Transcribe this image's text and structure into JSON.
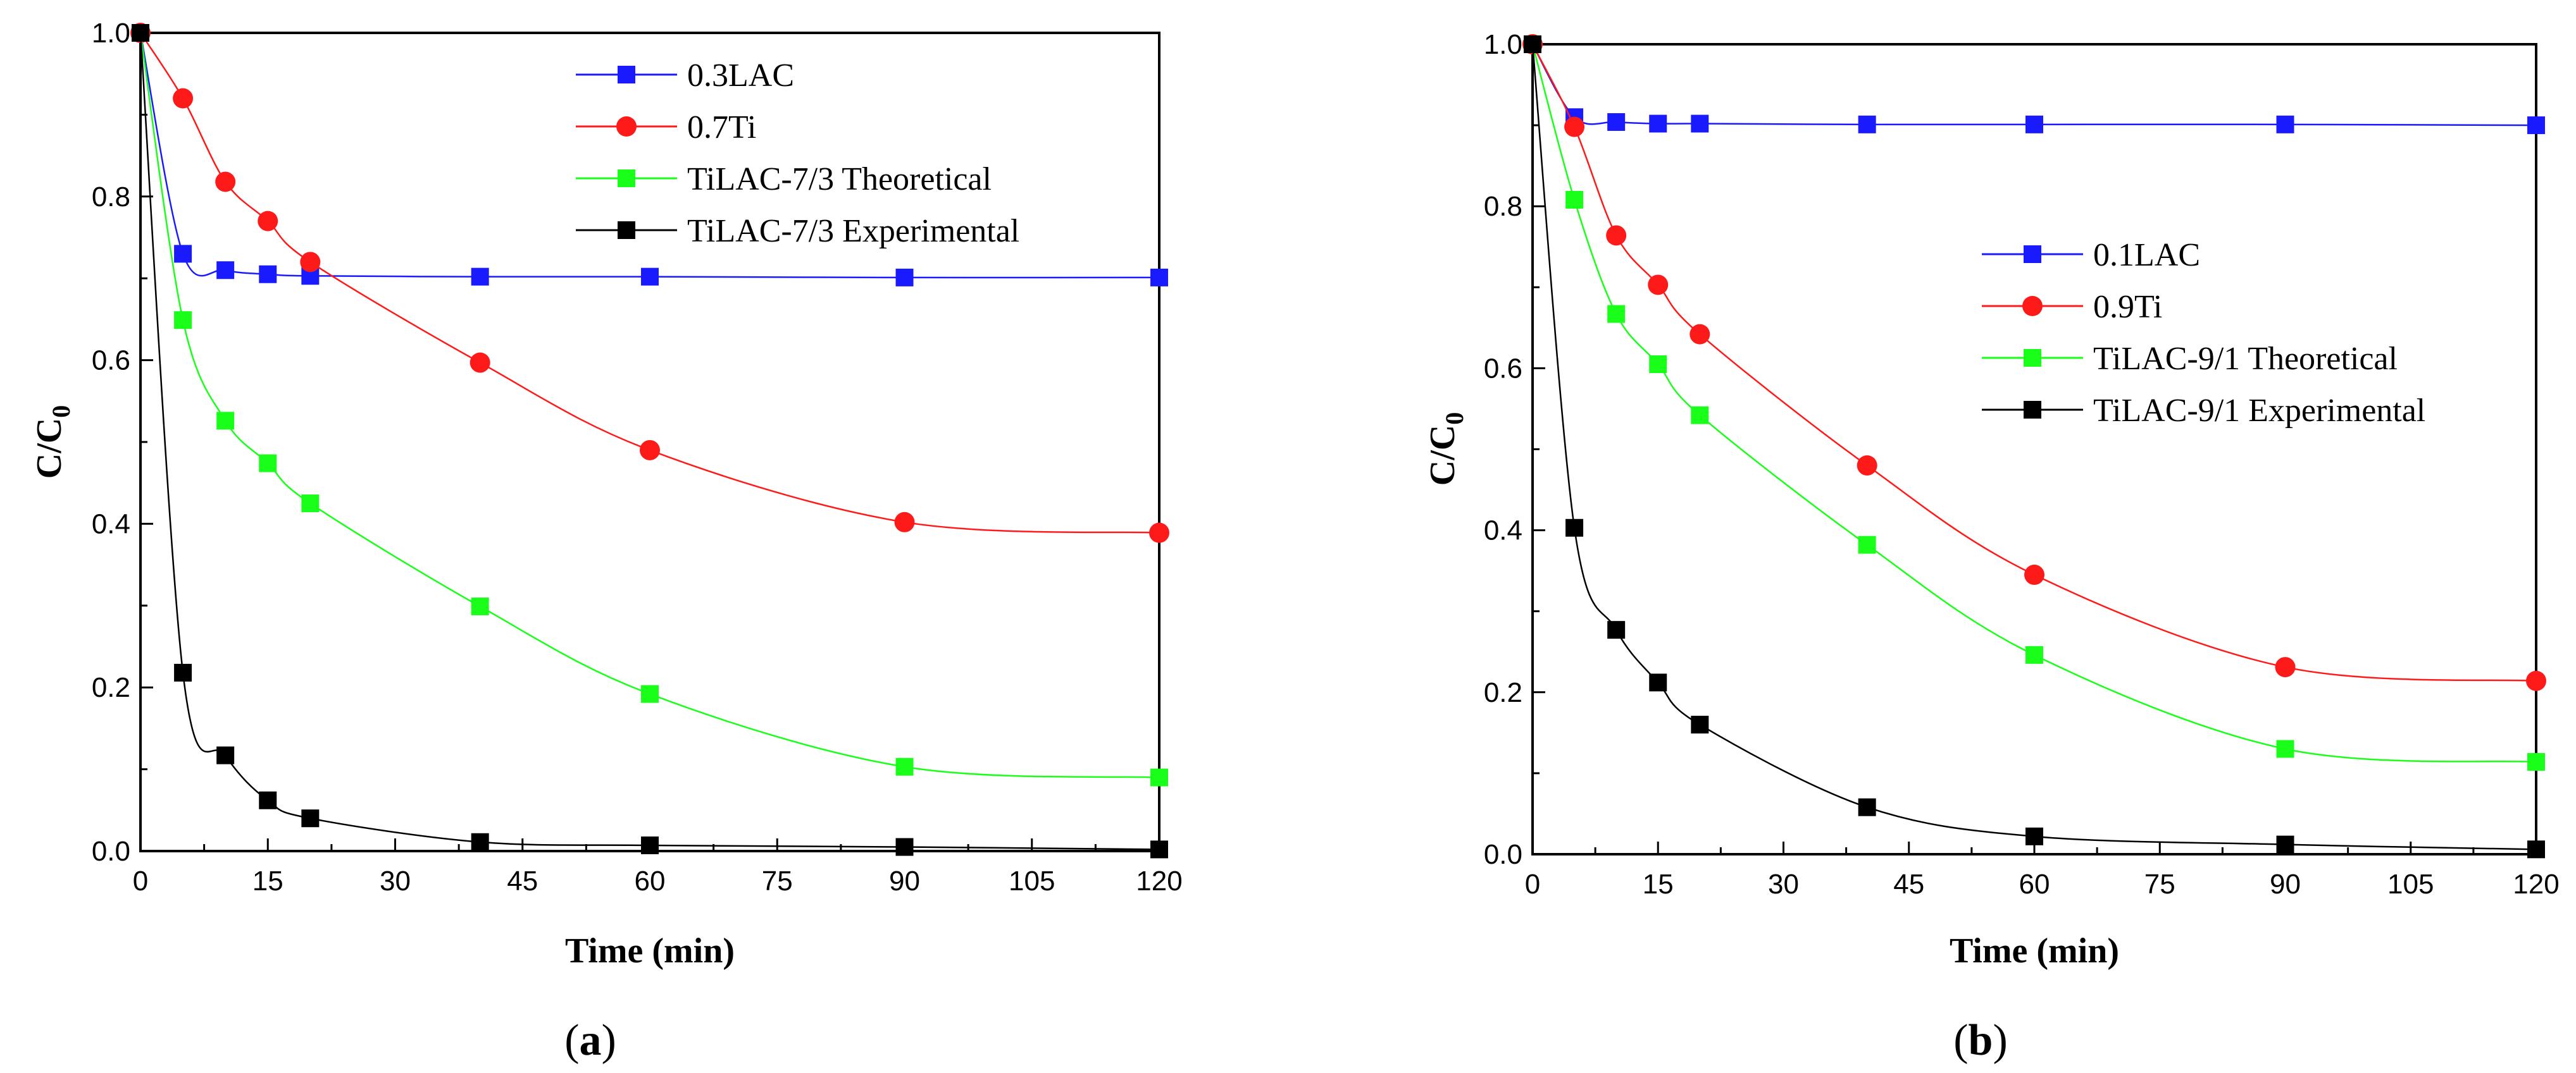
{
  "chart_data": [
    {
      "type": "line",
      "panel_label_prefix": "(",
      "panel_label": "a",
      "panel_label_suffix": ")",
      "xlabel": "Time (min)",
      "ylabel_main": "C/C",
      "ylabel_sub": "0",
      "xlim": [
        0,
        120
      ],
      "ylim": [
        0,
        1.0
      ],
      "xticks": [
        "0",
        "15",
        "30",
        "45",
        "60",
        "75",
        "90",
        "105",
        "120"
      ],
      "yticks": [
        "0.0",
        "0.2",
        "0.4",
        "0.6",
        "0.8",
        "1.0"
      ],
      "legend_position": "top-right",
      "series": [
        {
          "name": "0.3LAC",
          "color": "#1a1aff",
          "marker": "square",
          "x": [
            0,
            5,
            10,
            15,
            20,
            40,
            60,
            90,
            120
          ],
          "y": [
            1.0,
            0.73,
            0.71,
            0.705,
            0.703,
            0.702,
            0.702,
            0.701,
            0.701
          ]
        },
        {
          "name": "0.7Ti",
          "color": "#ff1a1a",
          "marker": "circle",
          "x": [
            0,
            5,
            10,
            15,
            20,
            40,
            60,
            90,
            120
          ],
          "y": [
            1.0,
            0.92,
            0.818,
            0.77,
            0.72,
            0.597,
            0.49,
            0.402,
            0.389
          ]
        },
        {
          "name": "TiLAC-7/3 Theoretical",
          "color": "#1aff1a",
          "marker": "square",
          "x": [
            0,
            5,
            10,
            15,
            20,
            40,
            60,
            90,
            120
          ],
          "y": [
            1.0,
            0.649,
            0.526,
            0.474,
            0.425,
            0.299,
            0.192,
            0.103,
            0.09
          ]
        },
        {
          "name": "TiLAC-7/3 Experimental",
          "color": "#000000",
          "marker": "square",
          "x": [
            0,
            5,
            10,
            15,
            20,
            40,
            60,
            90,
            120
          ],
          "y": [
            1.0,
            0.218,
            0.117,
            0.062,
            0.04,
            0.011,
            0.007,
            0.005,
            0.002
          ]
        }
      ]
    },
    {
      "type": "line",
      "panel_label_prefix": "(",
      "panel_label": "b",
      "panel_label_suffix": ")",
      "xlabel": "Time (min)",
      "ylabel_main": "C/C",
      "ylabel_sub": "0",
      "xlim": [
        0,
        120
      ],
      "ylim": [
        0,
        1.0
      ],
      "xticks": [
        "0",
        "15",
        "30",
        "45",
        "60",
        "75",
        "90",
        "105",
        "120"
      ],
      "yticks": [
        "0.0",
        "0.2",
        "0.4",
        "0.6",
        "0.8",
        "1.0"
      ],
      "legend_position": "center-right",
      "series": [
        {
          "name": "0.1LAC",
          "color": "#1a1aff",
          "marker": "square",
          "x": [
            0,
            5,
            10,
            15,
            20,
            40,
            60,
            90,
            120
          ],
          "y": [
            1.0,
            0.91,
            0.904,
            0.902,
            0.902,
            0.901,
            0.901,
            0.901,
            0.9
          ]
        },
        {
          "name": "0.9Ti",
          "color": "#ff1a1a",
          "marker": "circle",
          "x": [
            0,
            5,
            10,
            15,
            20,
            40,
            60,
            90,
            120
          ],
          "y": [
            1.0,
            0.898,
            0.764,
            0.703,
            0.642,
            0.48,
            0.345,
            0.231,
            0.214
          ]
        },
        {
          "name": "TiLAC-9/1 Theoretical",
          "color": "#1aff1a",
          "marker": "square",
          "x": [
            0,
            5,
            10,
            15,
            20,
            40,
            60,
            90,
            120
          ],
          "y": [
            1.0,
            0.808,
            0.667,
            0.605,
            0.542,
            0.382,
            0.246,
            0.13,
            0.114
          ]
        },
        {
          "name": "TiLAC-9/1 Experimental",
          "color": "#000000",
          "marker": "square",
          "x": [
            0,
            5,
            10,
            15,
            20,
            40,
            60,
            90,
            120
          ],
          "y": [
            1.0,
            0.403,
            0.277,
            0.212,
            0.16,
            0.058,
            0.022,
            0.012,
            0.006
          ]
        }
      ]
    }
  ]
}
